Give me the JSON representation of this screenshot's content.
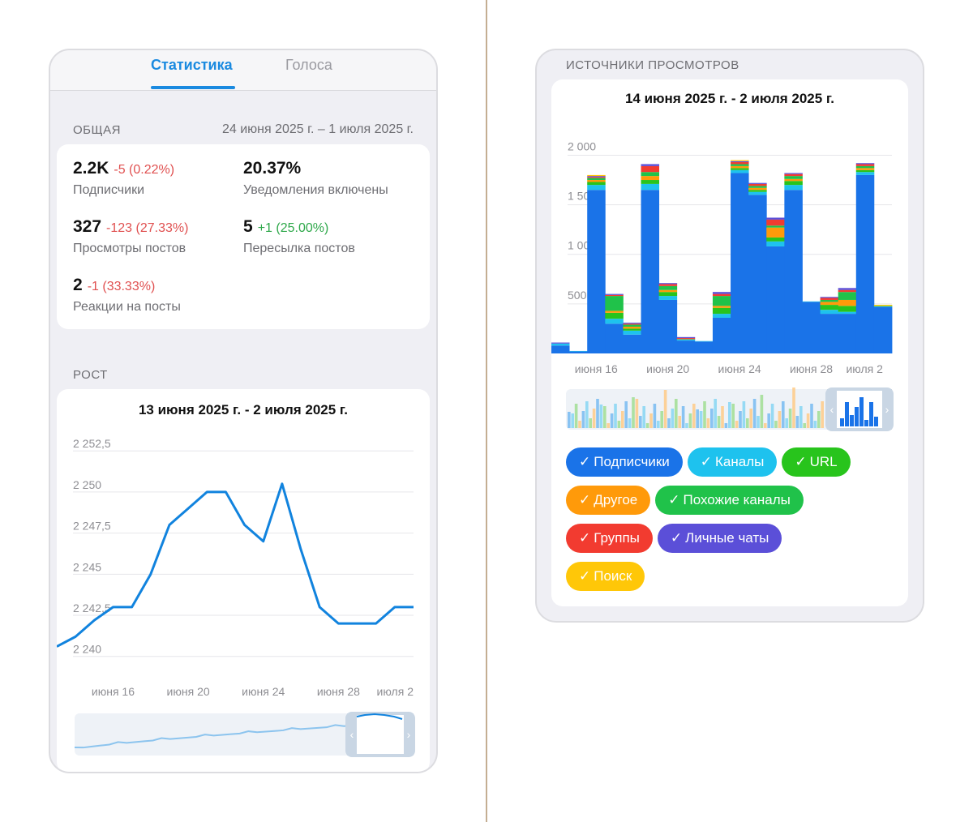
{
  "stats_screen": {
    "tabs": [
      {
        "label": "Статистика",
        "active": true
      },
      {
        "label": "Голоса",
        "active": false
      }
    ],
    "overview": {
      "title": "ОБЩАЯ",
      "date_range": "24 июня 2025 г. – 1 июля 2025 г.",
      "metrics": [
        {
          "value": "2.2K",
          "delta": "-5 (0.22%)",
          "trend": "negative",
          "label": "Подписчики"
        },
        {
          "value": "20.37%",
          "delta": "",
          "trend": "none",
          "label": "Уведомления включены"
        },
        {
          "value": "327",
          "delta": "-123 (27.33%)",
          "trend": "negative",
          "label": "Просмотры постов"
        },
        {
          "value": "5",
          "delta": "+1 (25.00%)",
          "trend": "positive",
          "label": "Пересылка постов"
        },
        {
          "value": "2",
          "delta": "-1 (33.33%)",
          "trend": "negative",
          "label": "Реакции на посты"
        }
      ]
    },
    "growth": {
      "title": "РОСТ"
    }
  },
  "sources_screen": {
    "title": "ИСТОЧНИКИ ПРОСМОТРОВ",
    "legend_chips": [
      {
        "label": "Подписчики",
        "color": "#1a73e8"
      },
      {
        "label": "Каналы",
        "color": "#1ec2ee"
      },
      {
        "label": "URL",
        "color": "#28c41c"
      },
      {
        "label": "Другое",
        "color": "#ff9a0a"
      },
      {
        "label": "Похожие каналы",
        "color": "#20c24a"
      },
      {
        "label": "Группы",
        "color": "#f23b30"
      },
      {
        "label": "Личные чаты",
        "color": "#5b4fd8"
      },
      {
        "label": "Поиск",
        "color": "#ffc708"
      }
    ],
    "check_glyph": "✓"
  },
  "colors": {
    "accent": "#1a8ae0",
    "line": "#1183de",
    "negative": "#e05050",
    "positive": "#2ea84a"
  },
  "chart_data": [
    {
      "type": "line",
      "title": "13 июня 2025 г. - 2 июля 2025 г.",
      "x": [
        "2025-06-13",
        "2025-06-14",
        "2025-06-15",
        "2025-06-16",
        "2025-06-17",
        "2025-06-18",
        "2025-06-19",
        "2025-06-20",
        "2025-06-21",
        "2025-06-22",
        "2025-06-23",
        "2025-06-24",
        "2025-06-25",
        "2025-06-26",
        "2025-06-27",
        "2025-06-28",
        "2025-06-29",
        "2025-06-30",
        "2025-07-01",
        "2025-07-02"
      ],
      "series": [
        {
          "values": [
            2240.6,
            2241.2,
            2242.2,
            2243,
            2243,
            2245,
            2248,
            2249,
            2250,
            2250,
            2248,
            2247,
            2250.5,
            2246.5,
            2243,
            2242,
            2242,
            2242,
            2243,
            2243
          ]
        }
      ],
      "x_ticks": [
        "июня 16",
        "июня 20",
        "июня 24",
        "июня 28",
        "июля 2"
      ],
      "y_ticks": [
        "2 240",
        "2 242,5",
        "2 245",
        "2 247,5",
        "2 250",
        "2 252,5"
      ],
      "ylim": [
        2239,
        2253.3
      ],
      "grid": true
    },
    {
      "type": "bar",
      "stacked": true,
      "title": "14 июня 2025 г. - 2 июля 2025 г.",
      "categories": [
        "2025-06-14",
        "2025-06-15",
        "2025-06-16",
        "2025-06-17",
        "2025-06-18",
        "2025-06-19",
        "2025-06-20",
        "2025-06-21",
        "2025-06-22",
        "2025-06-23",
        "2025-06-24",
        "2025-06-25",
        "2025-06-26",
        "2025-06-27",
        "2025-06-28",
        "2025-06-29",
        "2025-06-30",
        "2025-07-01",
        "2025-07-02"
      ],
      "series": [
        {
          "name": "Подписчики",
          "color": "#1a73e8",
          "values": [
            80,
            20,
            1650,
            300,
            190,
            1650,
            540,
            130,
            120,
            360,
            1820,
            1600,
            1080,
            1650,
            520,
            400,
            400,
            1800,
            470
          ]
        },
        {
          "name": "Каналы",
          "color": "#1ec2ee",
          "values": [
            20,
            5,
            50,
            50,
            40,
            60,
            40,
            10,
            5,
            40,
            30,
            30,
            50,
            50,
            5,
            40,
            20,
            30,
            5
          ]
        },
        {
          "name": "URL",
          "color": "#28c41c",
          "values": [
            0,
            0,
            30,
            60,
            20,
            40,
            40,
            5,
            0,
            60,
            20,
            20,
            40,
            40,
            0,
            50,
            60,
            20,
            5
          ]
        },
        {
          "name": "Другое",
          "color": "#ff9a0a",
          "values": [
            0,
            0,
            20,
            20,
            20,
            40,
            20,
            0,
            0,
            20,
            20,
            20,
            100,
            20,
            0,
            30,
            60,
            20,
            0
          ]
        },
        {
          "name": "Похожие каналы",
          "color": "#20c24a",
          "values": [
            0,
            0,
            20,
            150,
            20,
            40,
            40,
            0,
            0,
            100,
            20,
            20,
            20,
            30,
            0,
            20,
            80,
            20,
            0
          ]
        },
        {
          "name": "Группы",
          "color": "#f23b30",
          "values": [
            0,
            0,
            10,
            10,
            10,
            60,
            20,
            10,
            0,
            20,
            20,
            20,
            60,
            20,
            0,
            20,
            20,
            20,
            0
          ]
        },
        {
          "name": "Личные чаты",
          "color": "#5b4fd8",
          "values": [
            10,
            0,
            10,
            10,
            10,
            20,
            10,
            10,
            0,
            20,
            10,
            10,
            20,
            10,
            0,
            10,
            20,
            10,
            0
          ]
        },
        {
          "name": "Поиск",
          "color": "#ffc708",
          "values": [
            0,
            0,
            10,
            0,
            0,
            0,
            0,
            0,
            0,
            0,
            10,
            0,
            0,
            0,
            0,
            0,
            0,
            0,
            10
          ]
        }
      ],
      "x_ticks": [
        "июня 16",
        "июня 20",
        "июня 24",
        "июня 28",
        "июля 2"
      ],
      "y_ticks": [
        "500",
        "1 000",
        "1 500",
        "2 000"
      ],
      "ylim": [
        0,
        2110
      ],
      "grid": true
    }
  ]
}
